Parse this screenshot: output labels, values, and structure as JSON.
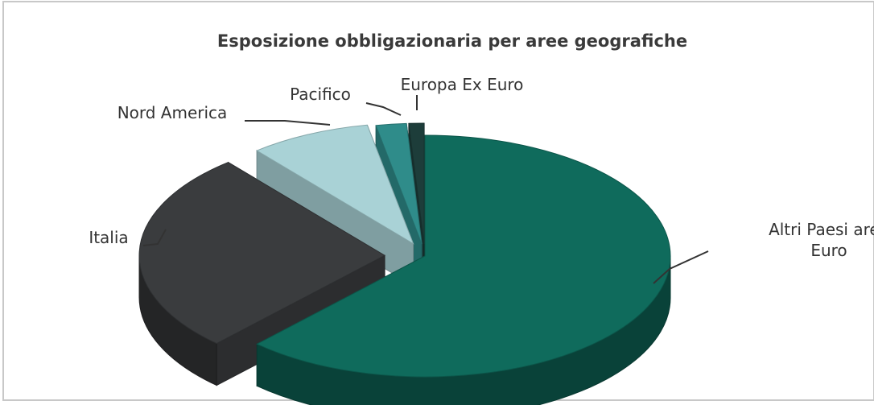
{
  "chart_data": {
    "type": "pie",
    "title": "Esposizione obbligazionaria per aree geografiche",
    "slices": [
      {
        "label": "Altri Paesi area Euro",
        "label_lines": [
          "Altri Paesi area",
          "Euro"
        ],
        "value": 62,
        "color": "#0f6b5c"
      },
      {
        "label": "Italia",
        "value": 27,
        "color": "#3a3c3e"
      },
      {
        "label": "Nord America",
        "value": 8,
        "color": "#a9d2d6"
      },
      {
        "label": "Pacifico",
        "value": 2,
        "color": "#2f8c8a"
      },
      {
        "label": "Europa Ex Euro",
        "value": 1,
        "color": "#1d3d3a"
      }
    ],
    "legend": "none"
  }
}
